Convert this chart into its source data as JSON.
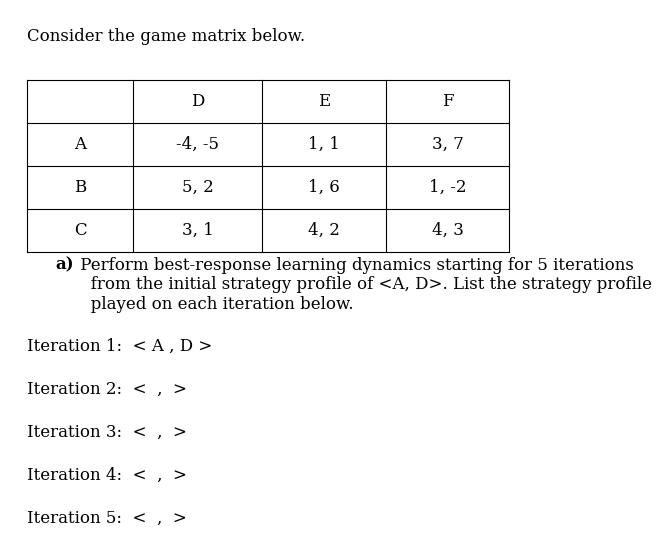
{
  "title": "Consider the game matrix below.",
  "title_fontsize": 12,
  "body_fontsize": 12,
  "table": {
    "col_headers": [
      "",
      "D",
      "E",
      "F"
    ],
    "rows": [
      [
        "A",
        "-4, -5",
        "1, 1",
        "3, 7"
      ],
      [
        "B",
        "5, 2",
        "1, 6",
        "1, -2"
      ],
      [
        "C",
        "3, 1",
        "4, 2",
        "4, 3"
      ]
    ]
  },
  "part_a_bold": "a)",
  "part_a_text": " Perform best-response learning dynamics starting for 5 iterations\n   from the initial strategy profile of <A, D>. List the strategy profile\n   played on each iteration below.",
  "iterations": [
    "Iteration 1:  < A , D >",
    "Iteration 2:  <  ,  >",
    "Iteration 3:  <  ,  >",
    "Iteration 4:  <  ,  >",
    "Iteration 5:  <  ,  >"
  ],
  "bg_color": "#ffffff",
  "text_color": "#000000",
  "table_font": 12,
  "font_family": "DejaVu Serif"
}
